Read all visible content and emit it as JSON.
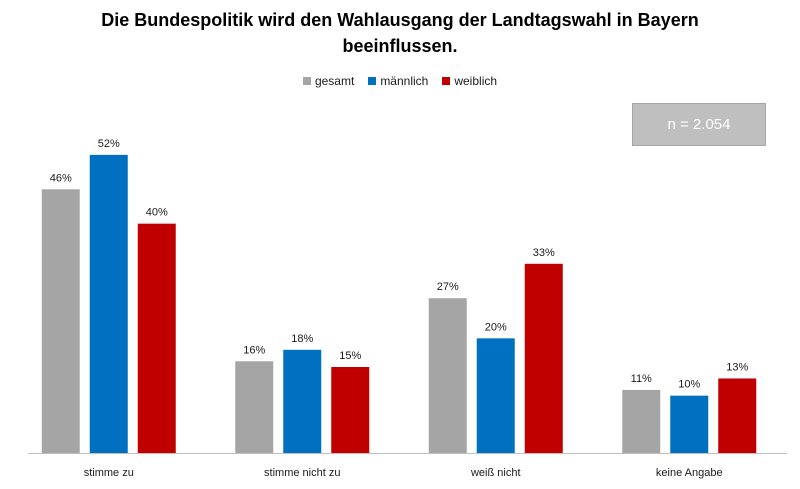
{
  "chart_data": {
    "type": "bar",
    "title": "Die Bundespolitik wird den Wahlausgang der Landtagswahl in Bayern beeinflussen.",
    "categories": [
      "stimme zu",
      "stimme nicht zu",
      "weiß nicht",
      "keine Angabe"
    ],
    "series": [
      {
        "name": "gesamt",
        "color": "#a5a5a5",
        "values": [
          46,
          16,
          27,
          11
        ]
      },
      {
        "name": "männlich",
        "color": "#0070c0",
        "values": [
          52,
          18,
          20,
          10
        ]
      },
      {
        "name": "weiblich",
        "color": "#c00000",
        "values": [
          40,
          15,
          33,
          13
        ]
      }
    ],
    "unit": "%",
    "ylim": [
      0,
      60
    ],
    "grid": false,
    "legend_position": "top-center",
    "annotation": "n = 2.054"
  }
}
